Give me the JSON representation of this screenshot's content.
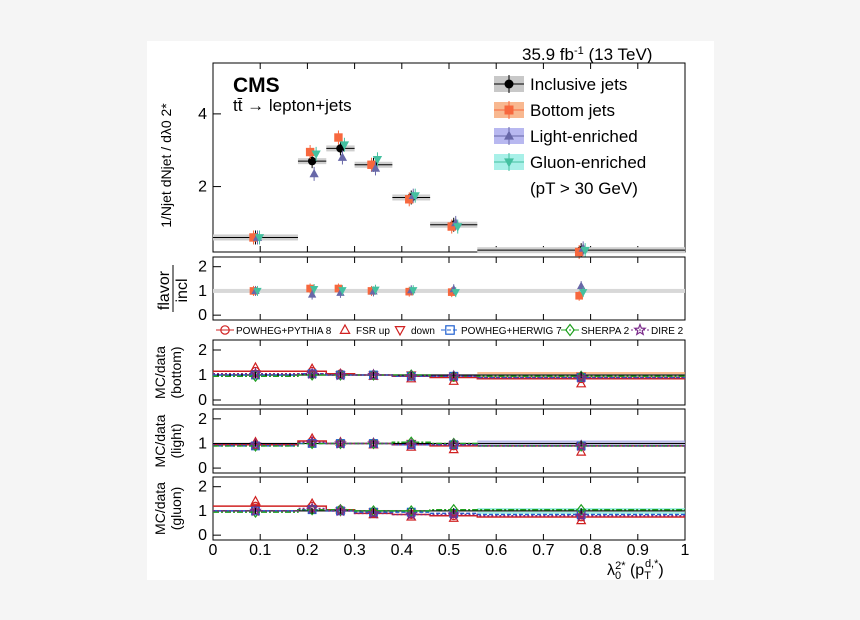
{
  "header": {
    "lumi": "35.9 fb",
    "lumi_sup": "-1",
    "energy": " (13 TeV)"
  },
  "labels": {
    "experiment": "CMS",
    "process": "tt̄ → lepton+jets"
  },
  "chart_data": {
    "type": "scatter",
    "x_bins": [
      [
        0,
        0.18
      ],
      [
        0.18,
        0.24
      ],
      [
        0.24,
        0.3
      ],
      [
        0.3,
        0.38
      ],
      [
        0.38,
        0.46
      ],
      [
        0.46,
        0.56
      ],
      [
        0.56,
        1.0
      ]
    ],
    "x_centers": [
      0.09,
      0.21,
      0.27,
      0.34,
      0.42,
      0.51,
      0.78
    ],
    "xlim": [
      0,
      1
    ],
    "xticks": [
      "0",
      "0.1",
      "0.2",
      "0.3",
      "0.4",
      "0.5",
      "0.6",
      "0.7",
      "0.8",
      "0.9",
      "1"
    ],
    "xlabel": "λ0 2* (pT d,*)",
    "panels": [
      {
        "name": "main",
        "ylabel": "1/Njet dNjet / dλ0 2*",
        "ylim": [
          0.2,
          5.4
        ],
        "yticks": [
          2,
          4
        ],
        "series": [
          {
            "name": "Inclusive jets",
            "marker": "circle",
            "color": "#000000",
            "values": [
              0.6,
              2.7,
              3.05,
              2.6,
              1.7,
              0.95,
              0.25
            ]
          },
          {
            "name": "Bottom jets",
            "marker": "square",
            "color": "#f7683e",
            "values": [
              0.6,
              2.95,
              3.35,
              2.6,
              1.65,
              0.9,
              0.2
            ]
          },
          {
            "name": "Light-enriched",
            "marker": "triangle-up",
            "color": "#6868a8",
            "values": [
              0.6,
              2.35,
              2.8,
              2.5,
              1.75,
              1.0,
              0.3
            ]
          },
          {
            "name": "Gluon-enriched",
            "marker": "triangle-down",
            "color": "#44c0a0",
            "values": [
              0.6,
              2.9,
              3.15,
              2.75,
              1.75,
              0.9,
              0.25
            ]
          }
        ],
        "legend_note": "(pT > 30 GeV)"
      },
      {
        "name": "ratio",
        "ylabel_top": "flavor",
        "ylabel_bottom": "incl",
        "ylim": [
          -0.2,
          2.4
        ],
        "yticks": [
          0,
          1,
          2
        ],
        "series": [
          {
            "name": "Bottom jets",
            "values": [
              1.0,
              1.1,
              1.1,
              1.0,
              0.97,
              0.95,
              0.8
            ]
          },
          {
            "name": "Light-enriched",
            "values": [
              1.0,
              0.85,
              0.92,
              0.98,
              1.03,
              1.07,
              1.2
            ]
          },
          {
            "name": "Gluon-enriched",
            "values": [
              1.0,
              1.08,
              1.03,
              1.05,
              1.03,
              0.95,
              0.95
            ]
          }
        ]
      }
    ],
    "mc_legend": [
      "POWHEG+PYTHIA 8",
      "FSR up",
      "down",
      "POWHEG+HERWIG 7",
      "SHERPA 2",
      "DIRE 2"
    ],
    "mc_panels": [
      {
        "ylabel_top": "MC/data",
        "ylabel_bottom": "(bottom)",
        "ylim": [
          -0.2,
          2.4
        ],
        "yticks": [
          0,
          1,
          2
        ],
        "band": "#f7a060",
        "pythia": [
          1.15,
          1.15,
          1.05,
          1.0,
          0.95,
          0.9,
          0.85
        ],
        "fsr_up": [
          1.3,
          1.25,
          1.05,
          0.95,
          0.85,
          0.75,
          0.65
        ],
        "fsr_down": [
          1.05,
          1.05,
          1.0,
          1.0,
          1.0,
          0.95,
          0.95
        ],
        "herwig": [
          1.0,
          1.05,
          1.0,
          1.0,
          0.95,
          0.95,
          0.9
        ],
        "sherpa": [
          0.95,
          1.0,
          1.0,
          1.0,
          1.0,
          0.95,
          0.95
        ],
        "dire": [
          1.05,
          1.05,
          1.0,
          1.0,
          0.95,
          0.95,
          0.9
        ]
      },
      {
        "ylabel_top": "MC/data",
        "ylabel_bottom": "(light)",
        "ylim": [
          -0.2,
          2.4
        ],
        "yticks": [
          0,
          1,
          2
        ],
        "band": "#9a9ae0",
        "pythia": [
          0.95,
          1.1,
          1.0,
          1.0,
          0.95,
          0.9,
          0.9
        ],
        "fsr_up": [
          1.05,
          1.2,
          1.05,
          0.95,
          0.85,
          0.75,
          0.65
        ],
        "fsr_down": [
          0.9,
          1.0,
          1.0,
          1.0,
          1.0,
          0.95,
          0.9
        ],
        "herwig": [
          0.9,
          1.0,
          1.0,
          1.0,
          0.95,
          0.95,
          0.9
        ],
        "sherpa": [
          0.9,
          1.0,
          1.0,
          1.0,
          1.05,
          1.0,
          0.9
        ],
        "dire": [
          0.95,
          1.05,
          1.0,
          1.0,
          0.95,
          0.95,
          0.9
        ]
      },
      {
        "ylabel_top": "MC/data",
        "ylabel_bottom": "(gluon)",
        "ylim": [
          -0.2,
          2.4
        ],
        "yticks": [
          0,
          1,
          2
        ],
        "band": "#7ee8d8",
        "pythia": [
          1.2,
          1.2,
          1.05,
          0.9,
          0.85,
          0.8,
          0.75
        ],
        "fsr_up": [
          1.4,
          1.3,
          1.05,
          0.85,
          0.75,
          0.7,
          0.6
        ],
        "fsr_down": [
          1.1,
          1.1,
          1.0,
          0.95,
          0.9,
          0.9,
          0.85
        ],
        "herwig": [
          1.0,
          1.05,
          1.0,
          0.95,
          0.95,
          0.9,
          0.85
        ],
        "sherpa": [
          0.95,
          1.05,
          1.05,
          1.0,
          1.0,
          1.05,
          1.05
        ],
        "dire": [
          1.0,
          1.1,
          1.0,
          0.9,
          0.85,
          0.85,
          0.8
        ]
      }
    ]
  }
}
